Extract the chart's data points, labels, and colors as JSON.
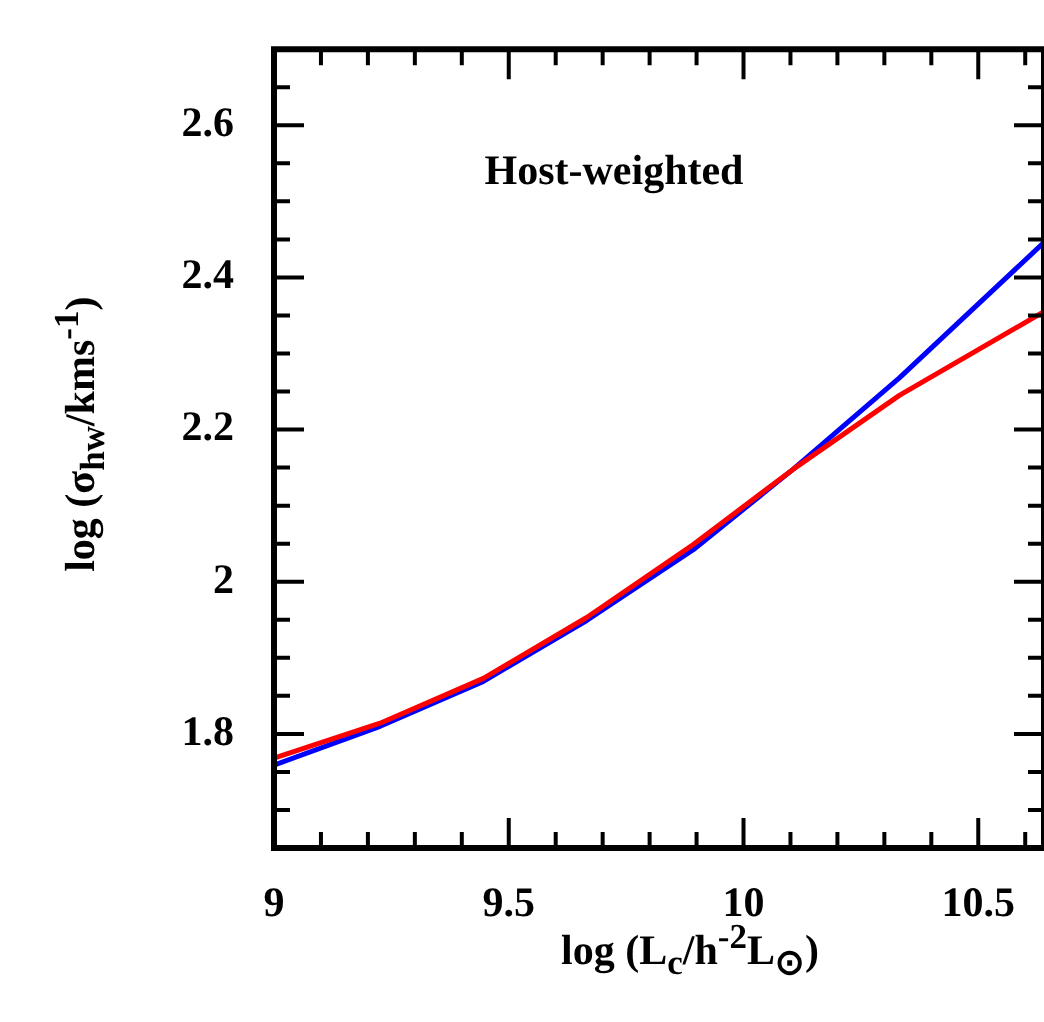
{
  "chart_data": {
    "type": "line",
    "xlabel": "log (L$_{c}$/h$^{-2}$L$_{⊙}$)",
    "ylabel": "log (σ$_{hw}$/kms$^{-1}$)",
    "annotations": [
      "Host-weighted"
    ],
    "x": [
      9,
      9.226,
      9.446,
      9.666,
      9.893,
      10.106,
      10.332,
      10.64
    ],
    "series": [
      {
        "color": "#ff0000",
        "values": [
          1.768,
          1.814,
          1.873,
          1.953,
          2.049,
          2.148,
          2.245,
          2.355
        ]
      },
      {
        "color": "#0000ff",
        "values": [
          1.759,
          1.81,
          1.869,
          1.949,
          2.042,
          2.148,
          2.268,
          2.446
        ]
      }
    ],
    "xlim": [
      9,
      10.64
    ],
    "ylim": [
      1.65,
      2.7
    ],
    "xticks": [
      9,
      {
        "value": 9.1,
        "label": null
      },
      {
        "value": 9.2,
        "label": null
      },
      {
        "value": 9.3,
        "label": null
      },
      {
        "value": 9.4,
        "label": null
      },
      9.5,
      {
        "value": 9.6,
        "label": null
      },
      {
        "value": 9.7,
        "label": null
      },
      {
        "value": 9.8,
        "label": null
      },
      {
        "value": 9.9,
        "label": null
      },
      10,
      {
        "value": 10.1,
        "label": null
      },
      {
        "value": 10.2,
        "label": null
      },
      {
        "value": 10.3,
        "label": null
      },
      {
        "value": 10.4,
        "label": null
      },
      10.5,
      {
        "value": 10.6,
        "label": null
      }
    ],
    "yticks": [
      {
        "value": 1.7,
        "label": null
      },
      {
        "value": 1.75,
        "label": null
      },
      1.8,
      {
        "value": 1.85,
        "label": null
      },
      {
        "value": 1.9,
        "label": null
      },
      {
        "value": 1.95,
        "label": null
      },
      2,
      {
        "value": 2.05,
        "label": null
      },
      {
        "value": 2.1,
        "label": null
      },
      {
        "value": 2.15,
        "label": null
      },
      2.2,
      {
        "value": 2.25,
        "label": null
      },
      {
        "value": 2.3,
        "label": null
      },
      {
        "value": 2.35,
        "label": null
      },
      2.4,
      {
        "value": 2.45,
        "label": null
      },
      {
        "value": 2.5,
        "label": null
      },
      {
        "value": 2.55,
        "label": null
      },
      2.6,
      {
        "value": 2.65,
        "label": null
      }
    ],
    "grid": false,
    "legend": false,
    "line_style": "solid",
    "marker": "none"
  }
}
